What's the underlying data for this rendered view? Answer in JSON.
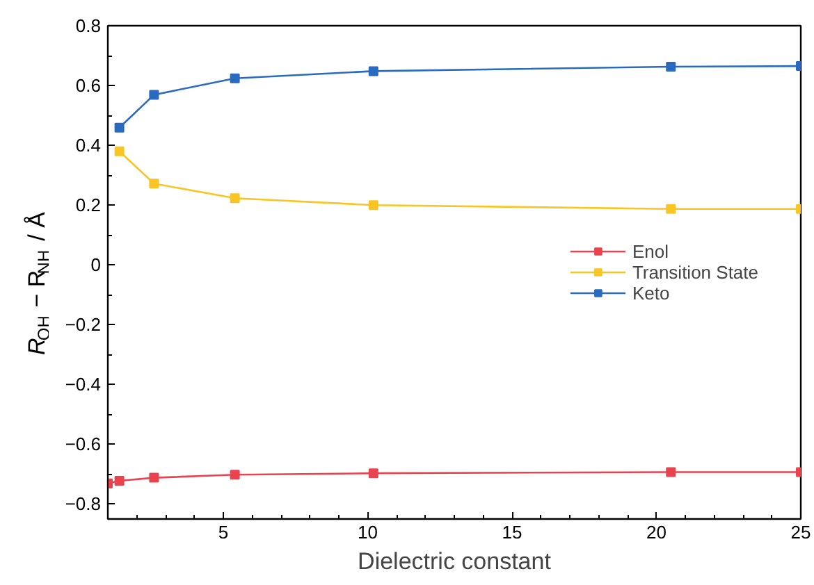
{
  "chart_data": {
    "type": "line",
    "xlabel": "Dielectric constant",
    "ylabel": "R$_{OH}$ − R$_{NH}$ / Å",
    "xlim": [
      1,
      25
    ],
    "xticks": [
      5,
      10,
      15,
      20,
      25
    ],
    "ylim": [
      -0.85,
      0.8
    ],
    "yticks": [
      {
        "value": -0.8,
        "label": "−0.8"
      },
      {
        "value": -0.6,
        "label": "−0.6"
      },
      {
        "value": -0.4,
        "label": "−0.4"
      },
      {
        "value": -0.2,
        "label": "−0.2"
      },
      0,
      0.2,
      0.4,
      0.6,
      0.8
    ],
    "grid": false,
    "legend": "right",
    "marker": "square",
    "line_style": "solid",
    "series": [
      {
        "name": "Enol",
        "color": "#e8434f",
        "x": [
          1.0,
          1.4,
          2.6,
          5.4,
          10.2,
          20.5,
          25
        ],
        "values": [
          -0.731,
          -0.722,
          -0.712,
          -0.702,
          -0.697,
          -0.693,
          -0.693
        ]
      },
      {
        "name": "Transition State",
        "color": "#f9c525",
        "x": [
          1.4,
          2.6,
          5.4,
          10.2,
          20.5,
          25
        ],
        "values": [
          0.38,
          0.272,
          0.223,
          0.2,
          0.187,
          0.187
        ]
      },
      {
        "name": "Keto",
        "color": "#2a6bbf",
        "x": [
          1.4,
          2.6,
          5.4,
          10.2,
          20.5,
          25
        ],
        "values": [
          0.459,
          0.569,
          0.624,
          0.648,
          0.663,
          0.665
        ]
      }
    ]
  }
}
